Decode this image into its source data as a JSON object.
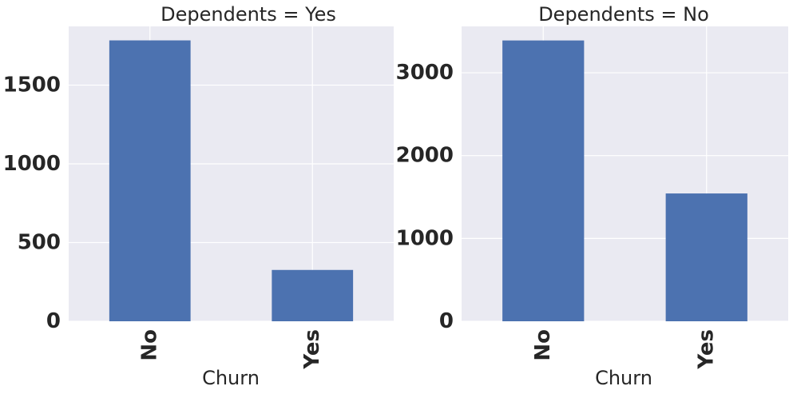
{
  "chart_data": [
    {
      "type": "bar",
      "title": "Dependents = Yes",
      "xlabel": "Churn",
      "ylabel": "",
      "categories": [
        "No",
        "Yes"
      ],
      "values": [
        1784,
        326
      ],
      "ylim": [
        0,
        1873
      ],
      "yticks": [
        0,
        500,
        1000,
        1500
      ],
      "grid": true
    },
    {
      "type": "bar",
      "title": "Dependents = No",
      "xlabel": "Churn",
      "ylabel": "",
      "categories": [
        "No",
        "Yes"
      ],
      "values": [
        3390,
        1543
      ],
      "ylim": [
        0,
        3560
      ],
      "yticks": [
        0,
        1000,
        2000,
        3000
      ],
      "grid": true
    }
  ],
  "colors": {
    "bar": "#4c72b0",
    "panel_background": "#eaeaf2",
    "grid": "#ffffff",
    "text": "#262626"
  }
}
